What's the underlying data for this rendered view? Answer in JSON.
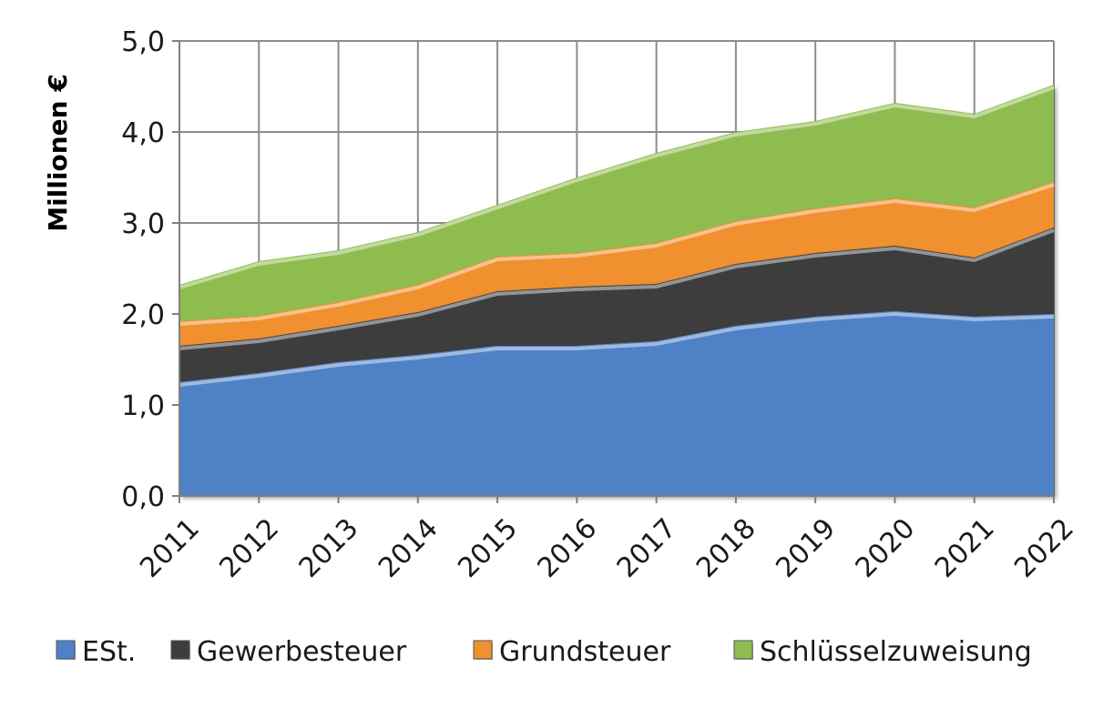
{
  "chart_data": {
    "type": "area",
    "stacked": true,
    "ylabel": "Millionen €",
    "xlabel": "",
    "x": [
      "2011",
      "2012",
      "2013",
      "2014",
      "2015",
      "2016",
      "2017",
      "2018",
      "2019",
      "2020",
      "2021",
      "2022"
    ],
    "ylim": [
      0,
      5
    ],
    "yticks": [
      "0,0",
      "1,0",
      "2,0",
      "3,0",
      "4,0",
      "5,0"
    ],
    "grid": true,
    "legend_position": "bottom",
    "series": [
      {
        "name": "ESt.",
        "color": "#4f81c7",
        "values": [
          1.25,
          1.35,
          1.47,
          1.55,
          1.65,
          1.65,
          1.7,
          1.87,
          1.97,
          2.03,
          1.97,
          2.0
        ]
      },
      {
        "name": "Gewerbesteuer",
        "color": "#3d3d3d",
        "values": [
          0.4,
          0.38,
          0.4,
          0.47,
          0.6,
          0.65,
          0.63,
          0.68,
          0.7,
          0.72,
          0.65,
          0.95
        ]
      },
      {
        "name": "Grundsteuer",
        "color": "#f0902e",
        "values": [
          0.27,
          0.25,
          0.26,
          0.3,
          0.38,
          0.37,
          0.45,
          0.47,
          0.49,
          0.52,
          0.55,
          0.5
        ]
      },
      {
        "name": "Schlüsselzuweisung",
        "color": "#8fbc4f",
        "values": [
          0.4,
          0.6,
          0.57,
          0.58,
          0.57,
          0.83,
          0.99,
          0.98,
          0.96,
          1.05,
          1.03,
          1.07
        ]
      }
    ]
  }
}
